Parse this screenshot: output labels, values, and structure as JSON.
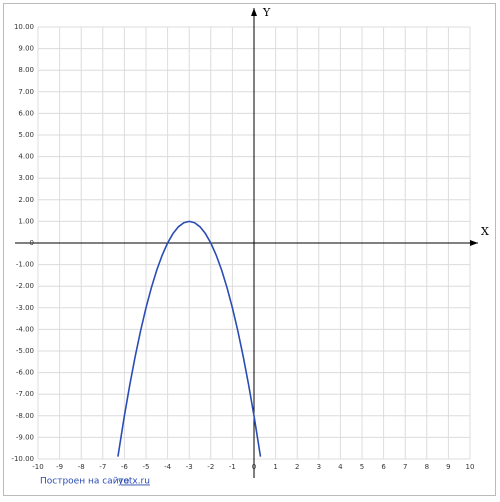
{
  "chart_data": {
    "type": "line",
    "x_label": "X",
    "y_label": "Y",
    "x": [
      -6.3,
      -6,
      -5.75,
      -5.5,
      -5.25,
      -5,
      -4.75,
      -4.5,
      -4.25,
      -4,
      -3.75,
      -3.5,
      -3.25,
      -3,
      -2.75,
      -2.5,
      -2.25,
      -2,
      -1.75,
      -1.5,
      -1.25,
      -1,
      -0.75,
      -0.5,
      -0.25,
      0,
      0.3
    ],
    "series": [
      {
        "color": "#2a4cb4",
        "values": [
          -9.89,
          -8,
          -6.5625,
          -5.25,
          -4.0625,
          -3,
          -2.0625,
          -1.25,
          -0.5625,
          0,
          0.4375,
          0.75,
          0.9375,
          1,
          0.9375,
          0.75,
          0.4375,
          0,
          -0.5625,
          -1.25,
          -2.0625,
          -3,
          -4.0625,
          -5.25,
          -6.5625,
          -8,
          -9.89
        ]
      }
    ],
    "xlim": [
      -10,
      10
    ],
    "ylim": [
      -10,
      10
    ],
    "xticks": [
      -10,
      -9,
      -8,
      -7,
      -6,
      -5,
      -4,
      -3,
      -2,
      -1,
      0,
      1,
      2,
      3,
      4,
      5,
      6,
      7,
      8,
      9,
      10
    ],
    "yticks": [
      {
        "value": 10,
        "label": "10.00"
      },
      {
        "value": 9,
        "label": "9.00"
      },
      {
        "value": 8,
        "label": "8.00"
      },
      {
        "value": 7,
        "label": "7.00"
      },
      {
        "value": 6,
        "label": "6.00"
      },
      {
        "value": 5,
        "label": "5.00"
      },
      {
        "value": 4,
        "label": "4.00"
      },
      {
        "value": 3,
        "label": "3.00"
      },
      {
        "value": 2,
        "label": "2.00"
      },
      {
        "value": 1,
        "label": "1.00"
      },
      0,
      {
        "value": -1,
        "label": "-1.00"
      },
      {
        "value": -2,
        "label": "-2.00"
      },
      {
        "value": -3,
        "label": "-3.00"
      },
      {
        "value": -4,
        "label": "-4.00"
      },
      {
        "value": -5,
        "label": "-5.00"
      },
      {
        "value": -6,
        "label": "-6.00"
      },
      {
        "value": -7,
        "label": "-7.00"
      },
      {
        "value": -8,
        "label": "-8.00"
      },
      {
        "value": -9,
        "label": "-9.00"
      },
      {
        "value": -10,
        "label": "-10.00"
      }
    ],
    "grid": true
  },
  "footer": {
    "text": "Построен на сайте",
    "link": "yotx.ru"
  }
}
